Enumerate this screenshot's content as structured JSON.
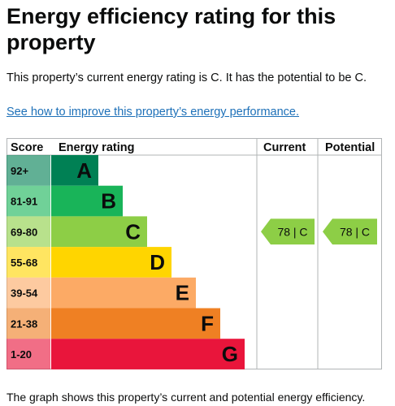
{
  "page": {
    "heading": "Energy efficiency rating for this property",
    "summary": "This property’s current energy rating is C. It has the potential to be C.",
    "improve_link": "See how to improve this property’s energy performance.",
    "footer": "The graph shows this property’s current and potential energy efficiency."
  },
  "chart_data": {
    "type": "table",
    "columns": [
      "Score",
      "Energy rating",
      "Current",
      "Potential"
    ],
    "bands": [
      {
        "score": "92+",
        "letter": "A",
        "color": "#008054"
      },
      {
        "score": "81-91",
        "letter": "B",
        "color": "#19b459"
      },
      {
        "score": "69-80",
        "letter": "C",
        "color": "#8dce46"
      },
      {
        "score": "55-68",
        "letter": "D",
        "color": "#ffd500"
      },
      {
        "score": "39-54",
        "letter": "E",
        "color": "#fcaa65"
      },
      {
        "score": "21-38",
        "letter": "F",
        "color": "#ef8023"
      },
      {
        "score": "1-20",
        "letter": "G",
        "color": "#e9153b"
      }
    ],
    "current": {
      "value": 78,
      "letter": "C",
      "label": "78 | C"
    },
    "potential": {
      "value": 78,
      "letter": "C",
      "label": "78 | C"
    }
  }
}
